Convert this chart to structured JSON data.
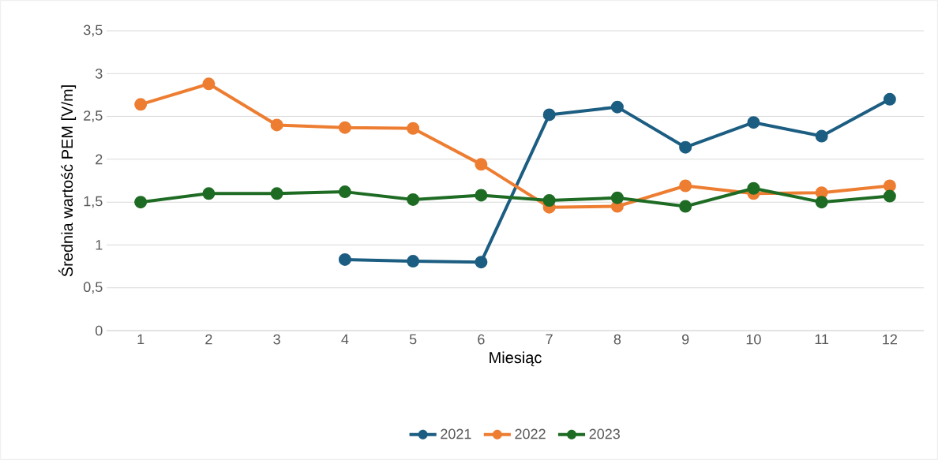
{
  "chart_data": {
    "type": "line",
    "xlabel": "Miesiąc",
    "ylabel": "Średnia wartość PEM [V/m]",
    "categories": [
      "1",
      "2",
      "3",
      "4",
      "5",
      "6",
      "7",
      "8",
      "9",
      "10",
      "11",
      "12"
    ],
    "series": [
      {
        "name": "2021",
        "color": "#1c5d82",
        "values": [
          null,
          null,
          null,
          0.83,
          0.81,
          0.8,
          2.52,
          2.61,
          2.14,
          2.43,
          2.27,
          2.7
        ]
      },
      {
        "name": "2022",
        "color": "#ed7d31",
        "values": [
          2.64,
          2.88,
          2.4,
          2.37,
          2.36,
          1.94,
          1.44,
          1.45,
          1.69,
          1.6,
          1.61,
          1.69
        ]
      },
      {
        "name": "2023",
        "color": "#1e6b24",
        "values": [
          1.5,
          1.6,
          1.6,
          1.62,
          1.53,
          1.58,
          1.52,
          1.55,
          1.45,
          1.66,
          1.5,
          1.57
        ]
      }
    ],
    "ylim": [
      0,
      3.5
    ],
    "yticks": [
      0,
      {
        "value": 0.5,
        "label": "0,5"
      },
      1,
      {
        "value": 1.5,
        "label": "1,5"
      },
      2,
      {
        "value": 2.5,
        "label": "2,5"
      },
      3,
      {
        "value": 3.5,
        "label": "3,5"
      }
    ],
    "grid": "y",
    "legend": "bottom",
    "marker": "circle",
    "line_style": "solid"
  }
}
